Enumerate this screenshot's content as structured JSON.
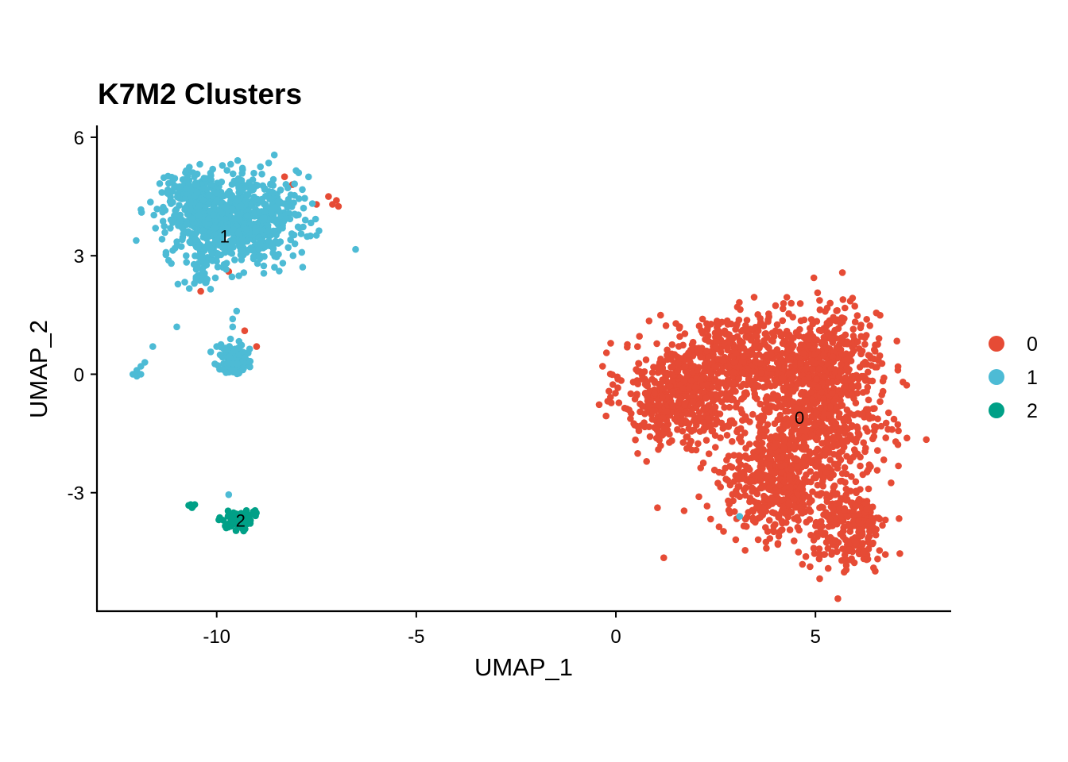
{
  "chart_data": {
    "type": "scatter",
    "title": "K7M2 Clusters",
    "xlabel": "UMAP_1",
    "ylabel": "UMAP_2",
    "xlim": [
      -13.0,
      8.4
    ],
    "ylim": [
      -6.0,
      6.3
    ],
    "xticks": [
      -10,
      -5,
      0,
      5
    ],
    "xtick_labels": [
      "-10",
      "-5",
      "0",
      "5"
    ],
    "yticks": [
      -3,
      0,
      3,
      6
    ],
    "ytick_labels": [
      "-3",
      "0",
      "3",
      "6"
    ],
    "grid": false,
    "legend_position": "right",
    "series": [
      {
        "name": "0",
        "color": "#E64B35",
        "label_text": "0",
        "label_pos": [
          4.6,
          -1.1
        ],
        "regions": [
          {
            "center": [
              1.6,
              -0.5
            ],
            "spread": [
              1.3,
              1.2
            ],
            "n": 520
          },
          {
            "center": [
              3.2,
              0.4
            ],
            "spread": [
              1.3,
              1.0
            ],
            "n": 380
          },
          {
            "center": [
              5.2,
              0.2
            ],
            "spread": [
              1.3,
              1.3
            ],
            "n": 520
          },
          {
            "center": [
              4.0,
              -2.8
            ],
            "spread": [
              1.3,
              1.2
            ],
            "n": 420
          },
          {
            "center": [
              5.8,
              -3.9
            ],
            "spread": [
              0.9,
              1.0
            ],
            "n": 260
          },
          {
            "center": [
              5.0,
              -1.4
            ],
            "spread": [
              1.6,
              1.1
            ],
            "n": 420
          }
        ],
        "extra_points": [
          [
            -8.3,
            5.0
          ],
          [
            -8.1,
            4.8
          ],
          [
            -7.5,
            4.3
          ],
          [
            -7.1,
            4.3
          ],
          [
            -7.0,
            4.4
          ],
          [
            -6.95,
            4.25
          ],
          [
            -7.2,
            4.5
          ],
          [
            -9.1,
            3.5
          ],
          [
            -9.7,
            2.6
          ],
          [
            -10.4,
            2.1
          ],
          [
            -9.3,
            1.1
          ],
          [
            -9.0,
            0.7
          ]
        ]
      },
      {
        "name": "1",
        "color": "#4DBBD5",
        "label_text": "1",
        "label_pos": [
          -9.8,
          3.5
        ],
        "regions": [
          {
            "center": [
              -9.6,
              3.9
            ],
            "spread": [
              1.5,
              1.0
            ],
            "n": 780
          },
          {
            "center": [
              -10.5,
              4.6
            ],
            "spread": [
              0.6,
              0.5
            ],
            "n": 120
          },
          {
            "center": [
              -9.6,
              0.4
            ],
            "spread": [
              0.35,
              0.35
            ],
            "n": 110
          },
          {
            "center": [
              -10.3,
              2.6
            ],
            "spread": [
              0.4,
              0.4
            ],
            "n": 30
          }
        ],
        "extra_points": [
          [
            -12.0,
            0.1
          ],
          [
            -12.1,
            0.0
          ],
          [
            -11.9,
            0.2
          ],
          [
            -11.8,
            0.3
          ],
          [
            -12.0,
            -0.05
          ],
          [
            -11.9,
            0.0
          ],
          [
            -11.6,
            0.7
          ],
          [
            -11.0,
            1.2
          ],
          [
            -10.0,
            0.7
          ],
          [
            -9.6,
            1.4
          ],
          [
            -9.5,
            1.6
          ],
          [
            -9.6,
            1.2
          ],
          [
            -9.7,
            -3.05
          ],
          [
            3.1,
            -3.6
          ]
        ]
      },
      {
        "name": "2",
        "color": "#00A087",
        "label_text": "2",
        "label_pos": [
          -9.4,
          -3.7
        ],
        "regions": [
          {
            "center": [
              -9.4,
              -3.7
            ],
            "spread": [
              0.3,
              0.22
            ],
            "n": 95
          }
        ],
        "extra_points": [
          [
            -10.65,
            -3.3
          ],
          [
            -10.6,
            -3.35
          ],
          [
            -10.7,
            -3.32
          ],
          [
            -10.55,
            -3.3
          ],
          [
            -10.62,
            -3.38
          ]
        ]
      }
    ]
  }
}
